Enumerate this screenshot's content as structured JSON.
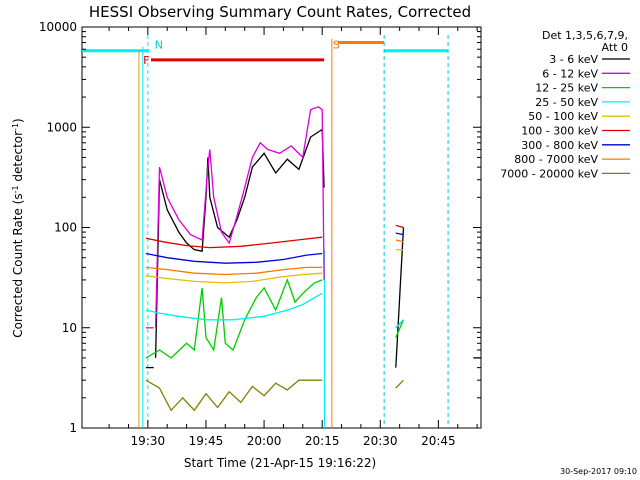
{
  "chart_data": {
    "type": "line",
    "title": "HESSI Observing Summary Count Rates, Corrected",
    "xlabel": "Start Time (21-Apr-15 19:16:22)",
    "ylabel_main": "Corrected Count Rate (s",
    "ylabel_sup1": "-1",
    "ylabel_mid": " detector",
    "ylabel_sup2": "-1",
    "ylabel_end": ")",
    "y_scale": "log",
    "ylim": [
      1,
      10000
    ],
    "xlim_minutes_from_1930": [
      -17,
      86
    ],
    "x_ticks": [
      {
        "label": "19:30",
        "t": 0
      },
      {
        "label": "19:45",
        "t": 15
      },
      {
        "label": "20:00",
        "t": 30
      },
      {
        "label": "20:15",
        "t": 45
      },
      {
        "label": "20:30",
        "t": 60
      },
      {
        "label": "20:45",
        "t": 75
      }
    ],
    "y_ticks": [
      {
        "label": "1",
        "v": 1
      },
      {
        "label": "10",
        "v": 10
      },
      {
        "label": "100",
        "v": 100
      },
      {
        "label": "1000",
        "v": 1000
      },
      {
        "label": "10000",
        "v": 10000
      }
    ],
    "legend_header": [
      "Det 1,3,5,6,7,9,",
      "Att 0"
    ],
    "legend_position": "right",
    "timestamp": "30-Sep-2017 09:10",
    "series": [
      {
        "name": "3 - 6 keV",
        "color": "#000000",
        "segments": [
          [
            [
              2,
              5
            ],
            [
              3,
              300
            ],
            [
              5,
              150
            ],
            [
              8,
              90
            ],
            [
              10,
              70
            ],
            [
              12,
              60
            ],
            [
              14,
              58
            ],
            [
              15,
              200
            ],
            [
              15.5,
              500
            ],
            [
              16,
              200
            ],
            [
              18,
              100
            ],
            [
              21,
              80
            ],
            [
              23,
              120
            ],
            [
              25,
              200
            ],
            [
              27,
              400
            ],
            [
              30,
              550
            ],
            [
              33,
              350
            ],
            [
              36,
              480
            ],
            [
              39,
              380
            ],
            [
              42,
              800
            ],
            [
              45,
              950
            ],
            [
              45.5,
              250
            ]
          ],
          [
            [
              -0.5,
              4
            ],
            [
              1.5,
              4
            ]
          ],
          [
            [
              84,
              5
            ],
            [
              86,
              5
            ]
          ],
          [
            [
              64,
              4
            ],
            [
              66,
              100
            ]
          ]
        ]
      },
      {
        "name": "6 - 12 keV",
        "color": "#dd00dd",
        "segments": [
          [
            [
              2,
              10
            ],
            [
              3,
              400
            ],
            [
              5,
              200
            ],
            [
              8,
              120
            ],
            [
              11,
              85
            ],
            [
              14,
              75
            ],
            [
              15.5,
              400
            ],
            [
              16,
              600
            ],
            [
              17,
              200
            ],
            [
              19,
              90
            ],
            [
              21,
              70
            ],
            [
              23,
              130
            ],
            [
              25,
              250
            ],
            [
              27,
              500
            ],
            [
              29,
              700
            ],
            [
              31,
              600
            ],
            [
              34,
              550
            ],
            [
              37,
              650
            ],
            [
              40,
              500
            ],
            [
              42,
              1500
            ],
            [
              44,
              1600
            ],
            [
              45,
              1500
            ],
            [
              45.5,
              30
            ]
          ],
          [
            [
              -0.5,
              10
            ],
            [
              1.5,
              10
            ]
          ],
          [
            [
              64,
              10
            ],
            [
              66,
              12
            ]
          ]
        ]
      },
      {
        "name": "12 - 25 keV",
        "color": "#00cc00",
        "segments": [
          [
            [
              -0.5,
              5
            ],
            [
              3,
              6
            ],
            [
              6,
              5
            ],
            [
              10,
              7
            ],
            [
              12,
              6
            ],
            [
              14,
              25
            ],
            [
              15,
              8
            ],
            [
              17,
              6
            ],
            [
              19,
              20
            ],
            [
              20,
              7
            ],
            [
              22,
              6
            ],
            [
              25,
              12
            ],
            [
              28,
              20
            ],
            [
              30,
              25
            ],
            [
              33,
              15
            ],
            [
              36,
              30
            ],
            [
              38,
              18
            ],
            [
              40,
              22
            ],
            [
              43,
              28
            ],
            [
              45,
              30
            ]
          ],
          [
            [
              64,
              8
            ],
            [
              66,
              12
            ]
          ]
        ]
      },
      {
        "name": "25 - 50 keV",
        "color": "#00eeee",
        "segments": [
          [
            [
              -0.5,
              15
            ],
            [
              3,
              14
            ],
            [
              8,
              13
            ],
            [
              15,
              12
            ],
            [
              22,
              12
            ],
            [
              30,
              13
            ],
            [
              36,
              15
            ],
            [
              40,
              17
            ],
            [
              43,
              20
            ],
            [
              45,
              22
            ]
          ],
          [
            [
              64,
              10
            ],
            [
              66,
              12
            ]
          ]
        ]
      },
      {
        "name": "50 - 100 keV",
        "color": "#e0c000",
        "segments": [
          [
            [
              -0.5,
              33
            ],
            [
              5,
              31
            ],
            [
              12,
              29
            ],
            [
              20,
              28
            ],
            [
              27,
              29
            ],
            [
              34,
              32
            ],
            [
              40,
              34
            ],
            [
              45,
              35
            ]
          ],
          [
            [
              64,
              60
            ],
            [
              66,
              60
            ]
          ]
        ]
      },
      {
        "name": "100 - 300 keV",
        "color": "#dd0000",
        "segments": [
          [
            [
              -0.5,
              78
            ],
            [
              4,
              72
            ],
            [
              10,
              66
            ],
            [
              16,
              63
            ],
            [
              24,
              65
            ],
            [
              32,
              70
            ],
            [
              40,
              76
            ],
            [
              45,
              80
            ]
          ],
          [
            [
              64,
              105
            ],
            [
              66,
              100
            ]
          ]
        ]
      },
      {
        "name": "300 - 800 keV",
        "color": "#0000dd",
        "segments": [
          [
            [
              -0.5,
              55
            ],
            [
              5,
              50
            ],
            [
              12,
              46
            ],
            [
              20,
              44
            ],
            [
              28,
              45
            ],
            [
              35,
              48
            ],
            [
              41,
              53
            ],
            [
              45,
              55
            ]
          ],
          [
            [
              64,
              88
            ],
            [
              66,
              85
            ]
          ]
        ]
      },
      {
        "name": "800 - 7000 keV",
        "color": "#ff7700",
        "segments": [
          [
            [
              -0.5,
              40
            ],
            [
              5,
              38
            ],
            [
              12,
              35
            ],
            [
              20,
              34
            ],
            [
              28,
              35
            ],
            [
              35,
              38
            ],
            [
              41,
              40
            ],
            [
              45,
              40
            ]
          ],
          [
            [
              64,
              75
            ],
            [
              66,
              72
            ]
          ]
        ]
      },
      {
        "name": "7000 - 20000 keV",
        "color": "#808000",
        "segments": [
          [
            [
              -0.5,
              3
            ],
            [
              3,
              2.5
            ],
            [
              6,
              1.5
            ],
            [
              9,
              2
            ],
            [
              12,
              1.5
            ],
            [
              15,
              2.2
            ],
            [
              18,
              1.6
            ],
            [
              21,
              2.3
            ],
            [
              24,
              1.8
            ],
            [
              27,
              2.6
            ],
            [
              30,
              2.1
            ],
            [
              33,
              2.8
            ],
            [
              36,
              2.4
            ],
            [
              39,
              3
            ],
            [
              42,
              3
            ],
            [
              45,
              3
            ]
          ],
          [
            [
              64,
              2.5
            ],
            [
              66,
              3
            ]
          ]
        ]
      }
    ],
    "shading_cyan_y": 5800,
    "orange_s_y": 7000,
    "red_f_y": 4700,
    "annotations": [
      {
        "text": "N",
        "t": 1,
        "color": "#00cccc"
      },
      {
        "text": "S",
        "t": 47,
        "color": "#ff7700"
      },
      {
        "text": "F",
        "t": -2,
        "color": "#dd0000"
      }
    ],
    "vlines": [
      {
        "t": 0,
        "color": "#00eeee"
      },
      {
        "t": 61,
        "color": "#00cccc"
      },
      {
        "t": 77.5,
        "color": "#00cccc"
      }
    ]
  }
}
